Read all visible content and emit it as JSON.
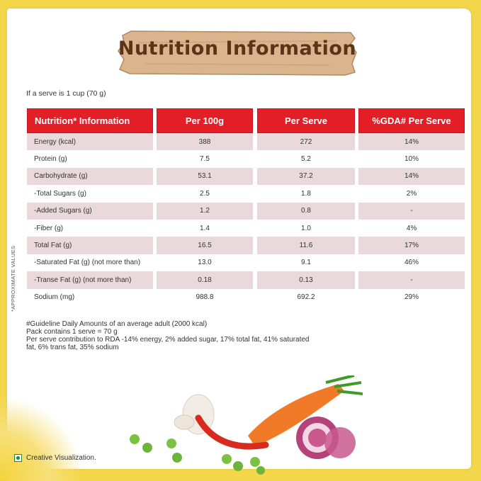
{
  "title": "Nutrition Information",
  "serve_note": "If a serve is 1 cup (70 g)",
  "side_note": "*APPROXIMATE VALUES",
  "table": {
    "headers": [
      "Nutrition* Information",
      "Per 100g",
      "Per Serve",
      "%GDA# Per Serve"
    ],
    "rows": [
      [
        "Energy (kcal)",
        "388",
        "272",
        "14%"
      ],
      [
        "Protein (g)",
        "7.5",
        "5.2",
        "10%"
      ],
      [
        "Carbohydrate (g)",
        "53.1",
        "37.2",
        "14%"
      ],
      [
        "-Total Sugars (g)",
        "2.5",
        "1.8",
        "2%"
      ],
      [
        "-Added Sugars (g)",
        "1.2",
        "0.8",
        "-"
      ],
      [
        "-Fiber (g)",
        "1.4",
        "1.0",
        "4%"
      ],
      [
        "Total Fat (g)",
        "16.5",
        "11.6",
        "17%"
      ],
      [
        "-Saturated Fat (g) (not more than)",
        "13.0",
        "9.1",
        "46%"
      ],
      [
        "-Transe Fat (g) (not more than)",
        "0.18",
        "0.13",
        "-"
      ],
      [
        "Sodium (mg)",
        "988.8",
        "692.2",
        "29%"
      ]
    ]
  },
  "footnotes": [
    "#Guideline Daily Amounts of an average adult (2000 kcal)",
    "Pack contains 1 serve = 70 g",
    "Per serve contribution to RDA -14% energy, 2% added sugar, 17% total fat, 41% saturated",
    "fat, 6% trans fat, 35% sodium"
  ],
  "legend_label": "Creative Visualization.",
  "colors": {
    "header_red": "#e41e26",
    "alt_row": "#e9d9dd",
    "banner_wood": "#d9b48c",
    "title_brown": "#5b3418"
  }
}
